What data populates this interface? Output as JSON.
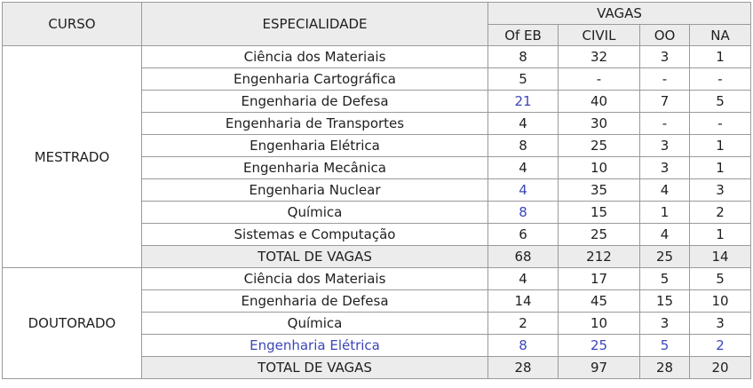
{
  "header": {
    "curso": "CURSO",
    "especialidade": "ESPECIALIDADE",
    "vagas": "VAGAS",
    "cols": [
      "Of EB",
      "CIVIL",
      "OO",
      "NA"
    ]
  },
  "mestrado": {
    "label": "MESTRADO",
    "rows": [
      {
        "name": "Ciência dos Materiais",
        "ofeb": "8",
        "civil": "32",
        "oo": "3",
        "na": "1"
      },
      {
        "name": "Engenharia Cartográfica",
        "ofeb": "5",
        "civil": "-",
        "oo": "-",
        "na": "-"
      },
      {
        "name": "Engenharia de Defesa",
        "ofeb": "21",
        "civil": "40",
        "oo": "7",
        "na": "5"
      },
      {
        "name": "Engenharia de Transportes",
        "ofeb": "4",
        "civil": "30",
        "oo": "-",
        "na": "-"
      },
      {
        "name": "Engenharia Elétrica",
        "ofeb": "8",
        "civil": "25",
        "oo": "3",
        "na": "1"
      },
      {
        "name": "Engenharia Mecânica",
        "ofeb": "4",
        "civil": "10",
        "oo": "3",
        "na": "1"
      },
      {
        "name": "Engenharia Nuclear",
        "ofeb": "4",
        "civil": "35",
        "oo": "4",
        "na": "3"
      },
      {
        "name": "Química",
        "ofeb": "8",
        "civil": "15",
        "oo": "1",
        "na": "2"
      },
      {
        "name": "Sistemas e Computação",
        "ofeb": "6",
        "civil": "25",
        "oo": "4",
        "na": "1"
      }
    ],
    "total": {
      "name": "TOTAL DE VAGAS",
      "ofeb": "68",
      "civil": "212",
      "oo": "25",
      "na": "14"
    }
  },
  "doutorado": {
    "label": "DOUTORADO",
    "rows": [
      {
        "name": "Ciência dos Materiais",
        "ofeb": "4",
        "civil": "17",
        "oo": "5",
        "na": "5"
      },
      {
        "name": "Engenharia de Defesa",
        "ofeb": "14",
        "civil": "45",
        "oo": "15",
        "na": "10"
      },
      {
        "name": "Química",
        "ofeb": "2",
        "civil": "10",
        "oo": "3",
        "na": "3"
      },
      {
        "name": "Engenharia Elétrica",
        "ofeb": "8",
        "civil": "25",
        "oo": "5",
        "na": "2"
      }
    ],
    "total": {
      "name": "TOTAL DE VAGAS",
      "ofeb": "28",
      "civil": "97",
      "oo": "28",
      "na": "20"
    }
  },
  "colors": {
    "header_bg": "#ececec",
    "border": "#9a9a9a",
    "highlight_text": "#3b46b7"
  }
}
